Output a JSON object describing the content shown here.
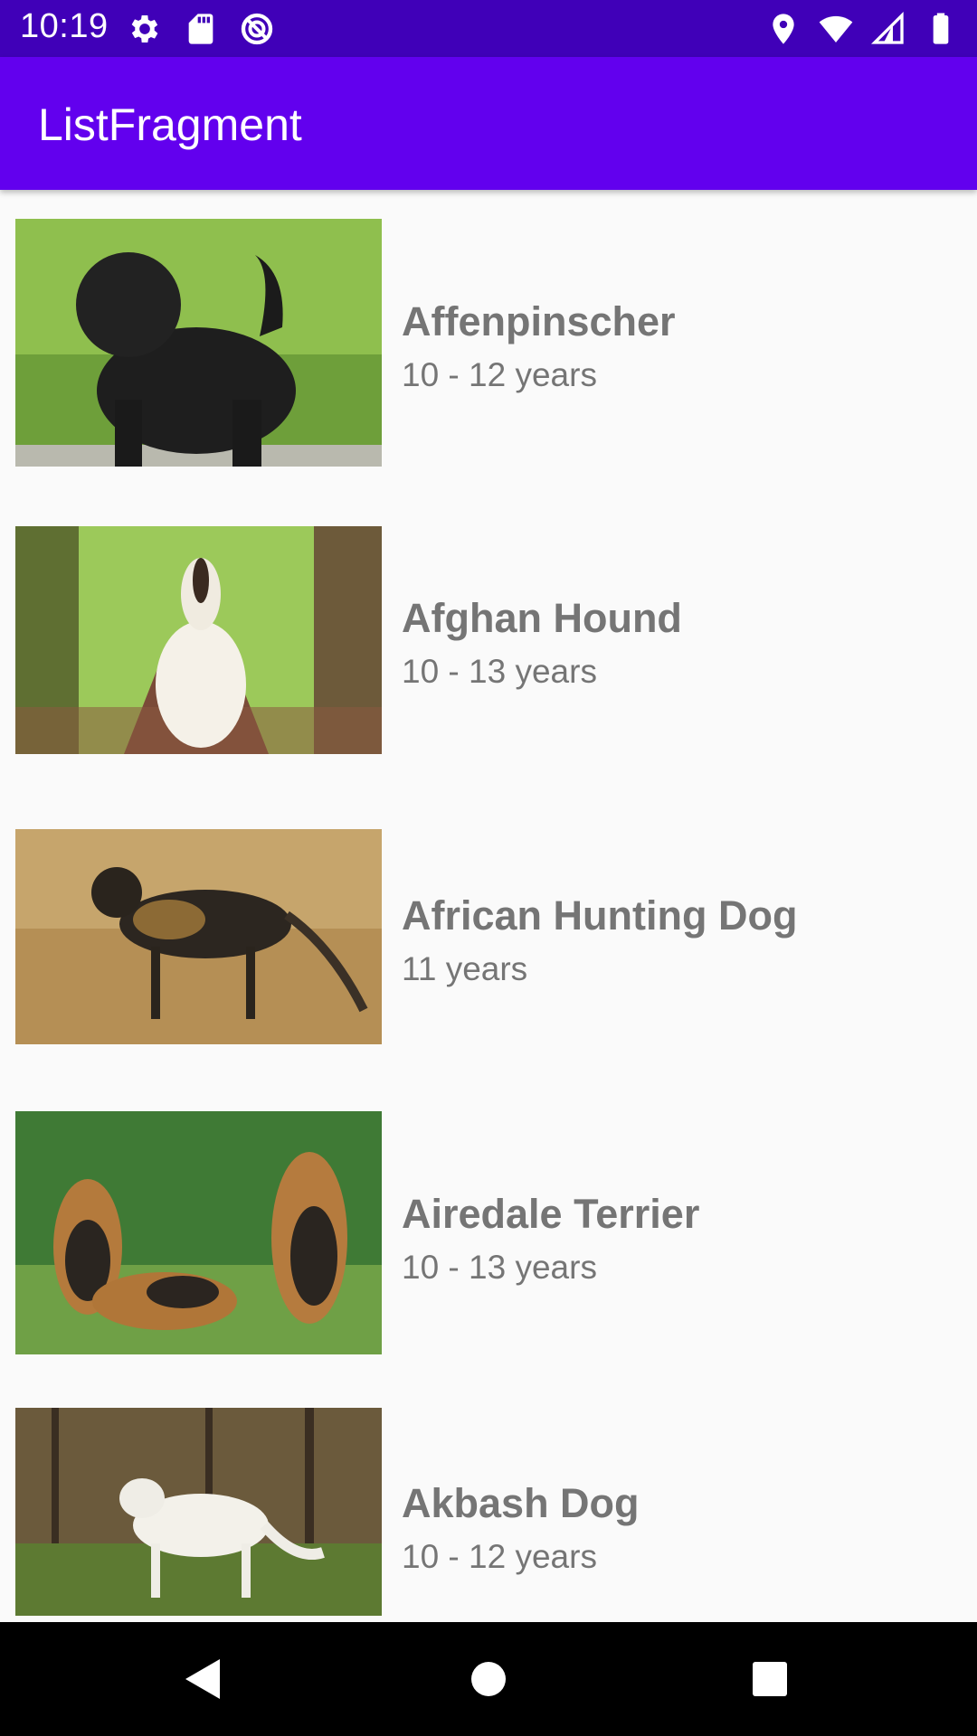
{
  "status_bar": {
    "time": "10:19",
    "left_icons": [
      "settings-icon",
      "sd-card-icon",
      "data-saver-icon"
    ],
    "right_icons": [
      "location-icon",
      "wifi-icon",
      "cell-signal-icon",
      "battery-icon"
    ]
  },
  "app_bar": {
    "title": "ListFragment"
  },
  "list": {
    "items": [
      {
        "name": "Affenpinscher",
        "life": "10 - 12 years",
        "image": "black-dog-on-grass-photo"
      },
      {
        "name": "Afghan Hound",
        "life": "10 - 13 years",
        "image": "white-long-haired-dog-in-park-photo"
      },
      {
        "name": "African Hunting Dog",
        "life": "11 years",
        "image": "spotted-wild-dog-in-dry-grass-photo"
      },
      {
        "name": "Airedale Terrier",
        "life": "10 - 13 years",
        "image": "three-terriers-in-garden-photo"
      },
      {
        "name": "Akbash Dog",
        "life": "10 - 12 years",
        "image": "white-dog-in-forest-photo"
      }
    ]
  },
  "nav_bar": {
    "buttons": [
      "back-icon",
      "home-icon",
      "recents-icon"
    ]
  },
  "colors": {
    "status_bar": "#4000b8",
    "app_bar": "#6200ee",
    "list_background": "#fafafa",
    "text": "#757575"
  }
}
